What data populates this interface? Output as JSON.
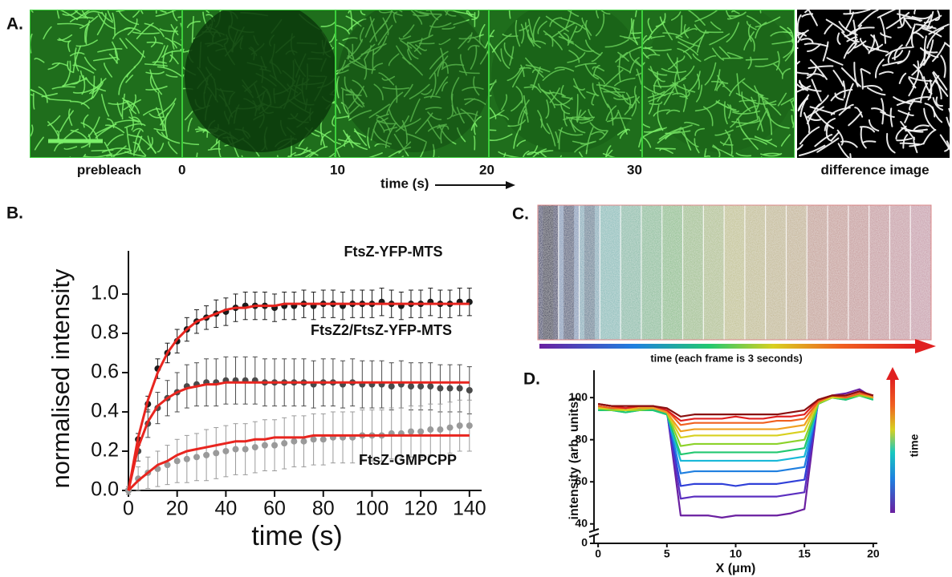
{
  "panel_labels": [
    "A.",
    "B.",
    "C.",
    "D."
  ],
  "panel_a": {
    "frame_labels": [
      "prebleach",
      "0",
      "10",
      "20",
      "30",
      "difference image"
    ],
    "time_label": "time (s)"
  },
  "panel_c": {
    "caption": "time (each frame is 3 seconds)"
  },
  "chart_data": [
    {
      "type": "line",
      "x_label": "time (s)",
      "y_label": "normalised intensity",
      "x": [
        0,
        4,
        8,
        12,
        16,
        20,
        24,
        28,
        32,
        36,
        40,
        44,
        48,
        52,
        56,
        60,
        64,
        68,
        72,
        76,
        80,
        84,
        88,
        92,
        96,
        100,
        104,
        108,
        112,
        116,
        120,
        124,
        128,
        132,
        136,
        140
      ],
      "xlim": [
        0,
        145
      ],
      "xticks": [
        0,
        20,
        40,
        60,
        80,
        100,
        120,
        140
      ],
      "ylim": [
        0,
        1.22
      ],
      "yticks": [
        {
          "value": 0,
          "label": "0.0"
        },
        0.2,
        0.4,
        0.6,
        0.8,
        {
          "value": 1,
          "label": "1.0"
        }
      ],
      "fit_color": "#e8251f",
      "series": [
        {
          "name": "FtsZ-YFP-MTS",
          "color": "#1a1a1a",
          "values": [
            0,
            0.26,
            0.44,
            0.62,
            0.7,
            0.76,
            0.82,
            0.86,
            0.88,
            0.9,
            0.91,
            0.93,
            0.94,
            0.94,
            0.94,
            0.93,
            0.94,
            0.94,
            0.95,
            0.94,
            0.95,
            0.95,
            0.94,
            0.95,
            0.95,
            0.95,
            0.96,
            0.95,
            0.94,
            0.95,
            0.95,
            0.96,
            0.95,
            0.95,
            0.96,
            0.96
          ],
          "errors": [
            0.01,
            0.03,
            0.04,
            0.05,
            0.05,
            0.06,
            0.06,
            0.06,
            0.06,
            0.07,
            0.07,
            0.07,
            0.07,
            0.07,
            0.07,
            0.07,
            0.07,
            0.07,
            0.07,
            0.07,
            0.07,
            0.07,
            0.07,
            0.07,
            0.07,
            0.07,
            0.07,
            0.07,
            0.07,
            0.07,
            0.07,
            0.07,
            0.07,
            0.07,
            0.07,
            0.07
          ],
          "fit": [
            0,
            0.27,
            0.46,
            0.6,
            0.7,
            0.77,
            0.82,
            0.86,
            0.88,
            0.9,
            0.92,
            0.93,
            0.93,
            0.94,
            0.94,
            0.94,
            0.95,
            0.95,
            0.95,
            0.95,
            0.95,
            0.95,
            0.95,
            0.95,
            0.95,
            0.95,
            0.95,
            0.95,
            0.95,
            0.95,
            0.95,
            0.95,
            0.95,
            0.95,
            0.95,
            0.95
          ]
        },
        {
          "name": "FtsZ2/FtsZ-YFP-MTS",
          "color": "#4a4a4a",
          "values": [
            0,
            0.2,
            0.34,
            0.42,
            0.47,
            0.5,
            0.53,
            0.54,
            0.55,
            0.55,
            0.56,
            0.56,
            0.56,
            0.56,
            0.55,
            0.55,
            0.55,
            0.55,
            0.55,
            0.54,
            0.55,
            0.55,
            0.54,
            0.55,
            0.54,
            0.54,
            0.54,
            0.53,
            0.54,
            0.53,
            0.53,
            0.53,
            0.52,
            0.52,
            0.52,
            0.51
          ],
          "errors": [
            0.02,
            0.05,
            0.07,
            0.08,
            0.09,
            0.1,
            0.11,
            0.11,
            0.12,
            0.12,
            0.12,
            0.12,
            0.12,
            0.12,
            0.12,
            0.12,
            0.12,
            0.12,
            0.12,
            0.12,
            0.12,
            0.12,
            0.12,
            0.12,
            0.12,
            0.12,
            0.12,
            0.12,
            0.12,
            0.12,
            0.12,
            0.12,
            0.12,
            0.12,
            0.12,
            0.12
          ],
          "fit": [
            0,
            0.22,
            0.35,
            0.43,
            0.47,
            0.5,
            0.52,
            0.53,
            0.54,
            0.54,
            0.55,
            0.55,
            0.55,
            0.55,
            0.55,
            0.55,
            0.55,
            0.55,
            0.55,
            0.55,
            0.55,
            0.55,
            0.55,
            0.55,
            0.55,
            0.55,
            0.55,
            0.55,
            0.55,
            0.55,
            0.55,
            0.55,
            0.55,
            0.55,
            0.55,
            0.55
          ]
        },
        {
          "name": "FtsZ-GMPCPP",
          "color": "#9a9a9a",
          "values": [
            0,
            0.06,
            0.09,
            0.11,
            0.13,
            0.15,
            0.16,
            0.17,
            0.18,
            0.19,
            0.2,
            0.21,
            0.21,
            0.22,
            0.23,
            0.23,
            0.24,
            0.25,
            0.25,
            0.26,
            0.26,
            0.27,
            0.27,
            0.27,
            0.28,
            0.28,
            0.28,
            0.29,
            0.29,
            0.3,
            0.3,
            0.31,
            0.31,
            0.32,
            0.33,
            0.33
          ],
          "errors": [
            0.02,
            0.06,
            0.08,
            0.09,
            0.1,
            0.11,
            0.12,
            0.12,
            0.13,
            0.13,
            0.13,
            0.13,
            0.13,
            0.13,
            0.13,
            0.13,
            0.13,
            0.13,
            0.13,
            0.13,
            0.13,
            0.13,
            0.13,
            0.13,
            0.13,
            0.13,
            0.13,
            0.13,
            0.13,
            0.13,
            0.13,
            0.13,
            0.13,
            0.13,
            0.13,
            0.13
          ],
          "fit": [
            0,
            0.05,
            0.09,
            0.13,
            0.15,
            0.18,
            0.2,
            0.21,
            0.22,
            0.23,
            0.24,
            0.25,
            0.25,
            0.26,
            0.26,
            0.27,
            0.27,
            0.27,
            0.27,
            0.28,
            0.28,
            0.28,
            0.28,
            0.28,
            0.28,
            0.28,
            0.28,
            0.28,
            0.28,
            0.28,
            0.28,
            0.28,
            0.28,
            0.28,
            0.28,
            0.28
          ]
        }
      ]
    },
    {
      "type": "line",
      "x_label": "X (μm)",
      "y_label": "intensity (arb. units)",
      "colorbar_label": "time",
      "x": [
        0,
        1,
        2,
        3,
        4,
        5,
        6,
        7,
        8,
        9,
        10,
        11,
        12,
        13,
        14,
        15,
        16,
        17,
        18,
        19,
        20
      ],
      "xlim": [
        -0.3,
        20.3
      ],
      "xticks": [
        0,
        5,
        10,
        15,
        20
      ],
      "ylim": [
        38,
        113
      ],
      "yticks": [
        0,
        40,
        60,
        80,
        100
      ],
      "axis_break": true,
      "series": [
        {
          "color": "#6a1fa0",
          "values": [
            97,
            96,
            95,
            96,
            96,
            94,
            44,
            44,
            44,
            43,
            44,
            44,
            44,
            44,
            45,
            47,
            99,
            101,
            102,
            104,
            100
          ]
        },
        {
          "color": "#5b2fc0",
          "values": [
            96,
            95,
            94,
            95,
            95,
            93,
            52,
            53,
            53,
            53,
            53,
            53,
            53,
            53,
            54,
            55,
            98,
            100,
            101,
            103,
            101
          ]
        },
        {
          "color": "#3040d8",
          "values": [
            95,
            95,
            94,
            94,
            95,
            93,
            58,
            59,
            59,
            59,
            58,
            59,
            59,
            59,
            60,
            61,
            98,
            100,
            100,
            102,
            100
          ]
        },
        {
          "color": "#1f7fe0",
          "values": [
            95,
            94,
            94,
            94,
            94,
            93,
            64,
            65,
            65,
            65,
            65,
            65,
            65,
            65,
            66,
            67,
            97,
            100,
            100,
            101,
            100
          ]
        },
        {
          "color": "#18b8d8",
          "values": [
            94,
            94,
            93,
            94,
            94,
            92,
            70,
            70,
            70,
            70,
            70,
            70,
            70,
            70,
            71,
            72,
            97,
            100,
            99,
            101,
            99
          ]
        },
        {
          "color": "#22c870",
          "values": [
            94,
            94,
            93,
            94,
            94,
            92,
            73,
            74,
            74,
            74,
            74,
            74,
            74,
            74,
            75,
            76,
            97,
            100,
            99,
            101,
            99
          ]
        },
        {
          "color": "#8cd22a",
          "values": [
            95,
            94,
            94,
            94,
            95,
            93,
            77,
            78,
            78,
            78,
            78,
            78,
            78,
            78,
            79,
            80,
            97,
            100,
            100,
            101,
            100
          ]
        },
        {
          "color": "#d8d020",
          "values": [
            95,
            95,
            94,
            95,
            95,
            93,
            81,
            82,
            82,
            82,
            82,
            82,
            82,
            82,
            83,
            84,
            98,
            100,
            100,
            102,
            100
          ]
        },
        {
          "color": "#f0a020",
          "values": [
            96,
            95,
            95,
            95,
            95,
            93,
            84,
            85,
            85,
            85,
            85,
            85,
            85,
            85,
            86,
            87,
            98,
            101,
            100,
            102,
            100
          ]
        },
        {
          "color": "#f06020",
          "values": [
            96,
            95,
            95,
            96,
            96,
            94,
            87,
            88,
            88,
            88,
            88,
            88,
            88,
            89,
            89,
            90,
            98,
            101,
            100,
            102,
            101
          ]
        },
        {
          "color": "#e02020",
          "values": [
            97,
            96,
            95,
            96,
            96,
            94,
            89,
            90,
            90,
            90,
            91,
            90,
            90,
            91,
            91,
            92,
            99,
            101,
            101,
            103,
            101
          ]
        },
        {
          "color": "#8a1010",
          "values": [
            97,
            96,
            96,
            96,
            96,
            95,
            91,
            92,
            92,
            92,
            92,
            92,
            92,
            92,
            93,
            94,
            99,
            101,
            101,
            103,
            101
          ]
        }
      ]
    }
  ]
}
